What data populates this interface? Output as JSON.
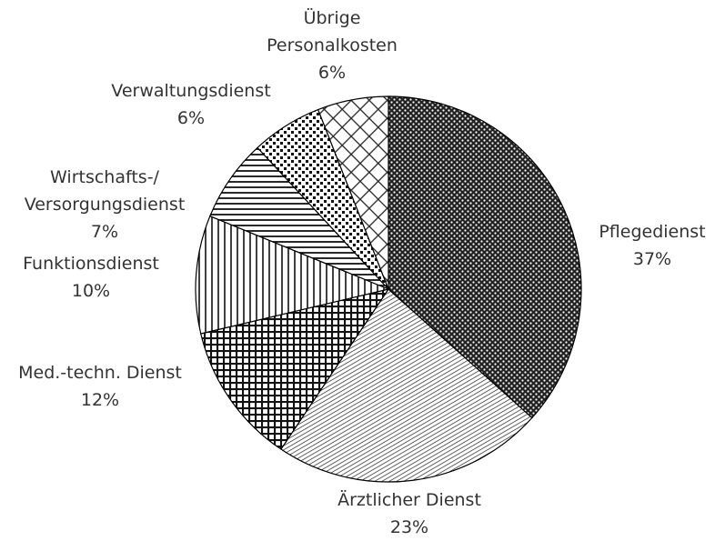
{
  "chart_data": {
    "type": "pie",
    "categories": [
      "Pflegedienst",
      "Ärztlicher Dienst",
      "Med.-techn. Dienst",
      "Funktionsdienst",
      "Wirtschafts-/\nVersorgungsdienst",
      "Verwaltungsdienst",
      "Übrige\nPersonalkosten"
    ],
    "values": [
      37,
      23,
      12,
      10,
      7,
      6,
      6
    ],
    "value_labels": [
      "37%",
      "23%",
      "12%",
      "10%",
      "7%",
      "6%",
      "6%"
    ]
  }
}
